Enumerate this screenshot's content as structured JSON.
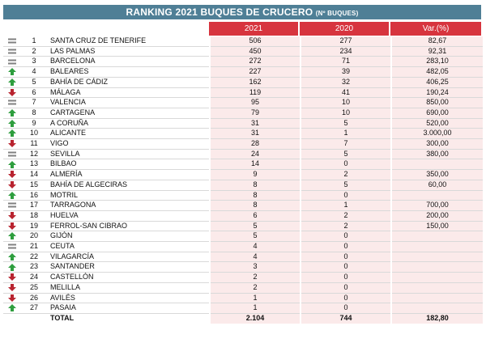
{
  "chart_data": {
    "type": "table",
    "title": "RANKING 2021 BUQUES DE CRUCERO",
    "subtitle": "(Nº BUQUES)",
    "columns": [
      "2021",
      "2020",
      "Var.(%)"
    ],
    "colors": {
      "up": "#2e9e3e",
      "down": "#b8232f",
      "equal": "#808080",
      "header": "#d7343e",
      "title_bar": "#4f7f96",
      "cell_bg": "#fbeaea"
    },
    "rows": [
      {
        "trend": "equal",
        "pos": "1",
        "port": "SANTA CRUZ DE TENERIFE",
        "v2021": "506",
        "v2020": "277",
        "var": "82,67"
      },
      {
        "trend": "equal",
        "pos": "2",
        "port": "LAS PALMAS",
        "v2021": "450",
        "v2020": "234",
        "var": "92,31"
      },
      {
        "trend": "equal",
        "pos": "3",
        "port": "BARCELONA",
        "v2021": "272",
        "v2020": "71",
        "var": "283,10"
      },
      {
        "trend": "up",
        "pos": "4",
        "port": "BALEARES",
        "v2021": "227",
        "v2020": "39",
        "var": "482,05"
      },
      {
        "trend": "up",
        "pos": "5",
        "port": "BAHÍA DE CÁDIZ",
        "v2021": "162",
        "v2020": "32",
        "var": "406,25"
      },
      {
        "trend": "down",
        "pos": "6",
        "port": "MÁLAGA",
        "v2021": "119",
        "v2020": "41",
        "var": "190,24"
      },
      {
        "trend": "equal",
        "pos": "7",
        "port": "VALENCIA",
        "v2021": "95",
        "v2020": "10",
        "var": "850,00"
      },
      {
        "trend": "up",
        "pos": "8",
        "port": "CARTAGENA",
        "v2021": "79",
        "v2020": "10",
        "var": "690,00"
      },
      {
        "trend": "up",
        "pos": "9",
        "port": "A CORUÑA",
        "v2021": "31",
        "v2020": "5",
        "var": "520,00"
      },
      {
        "trend": "up",
        "pos": "10",
        "port": "ALICANTE",
        "v2021": "31",
        "v2020": "1",
        "var": "3.000,00"
      },
      {
        "trend": "down",
        "pos": "11",
        "port": "VIGO",
        "v2021": "28",
        "v2020": "7",
        "var": "300,00"
      },
      {
        "trend": "equal",
        "pos": "12",
        "port": "SEVILLA",
        "v2021": "24",
        "v2020": "5",
        "var": "380,00"
      },
      {
        "trend": "up",
        "pos": "13",
        "port": "BILBAO",
        "v2021": "14",
        "v2020": "0",
        "var": ""
      },
      {
        "trend": "down",
        "pos": "14",
        "port": "ALMERÍA",
        "v2021": "9",
        "v2020": "2",
        "var": "350,00"
      },
      {
        "trend": "down",
        "pos": "15",
        "port": "BAHÍA DE ALGECIRAS",
        "v2021": "8",
        "v2020": "5",
        "var": "60,00"
      },
      {
        "trend": "up",
        "pos": "16",
        "port": "MOTRIL",
        "v2021": "8",
        "v2020": "0",
        "var": ""
      },
      {
        "trend": "equal",
        "pos": "17",
        "port": "TARRAGONA",
        "v2021": "8",
        "v2020": "1",
        "var": "700,00"
      },
      {
        "trend": "down",
        "pos": "18",
        "port": "HUELVA",
        "v2021": "6",
        "v2020": "2",
        "var": "200,00"
      },
      {
        "trend": "down",
        "pos": "19",
        "port": "FERROL-SAN CIBRAO",
        "v2021": "5",
        "v2020": "2",
        "var": "150,00"
      },
      {
        "trend": "up",
        "pos": "20",
        "port": "GIJÓN",
        "v2021": "5",
        "v2020": "0",
        "var": ""
      },
      {
        "trend": "equal",
        "pos": "21",
        "port": "CEUTA",
        "v2021": "4",
        "v2020": "0",
        "var": ""
      },
      {
        "trend": "up",
        "pos": "22",
        "port": "VILAGARCÍA",
        "v2021": "4",
        "v2020": "0",
        "var": ""
      },
      {
        "trend": "up",
        "pos": "23",
        "port": "SANTANDER",
        "v2021": "3",
        "v2020": "0",
        "var": ""
      },
      {
        "trend": "down",
        "pos": "24",
        "port": "CASTELLÓN",
        "v2021": "2",
        "v2020": "0",
        "var": ""
      },
      {
        "trend": "down",
        "pos": "25",
        "port": "MELILLA",
        "v2021": "2",
        "v2020": "0",
        "var": ""
      },
      {
        "trend": "down",
        "pos": "26",
        "port": "AVILÉS",
        "v2021": "1",
        "v2020": "0",
        "var": ""
      },
      {
        "trend": "up",
        "pos": "27",
        "port": "PASAIA",
        "v2021": "1",
        "v2020": "0",
        "var": ""
      }
    ],
    "total": {
      "label": "TOTAL",
      "v2021": "2.104",
      "v2020": "744",
      "var": "182,80"
    }
  }
}
